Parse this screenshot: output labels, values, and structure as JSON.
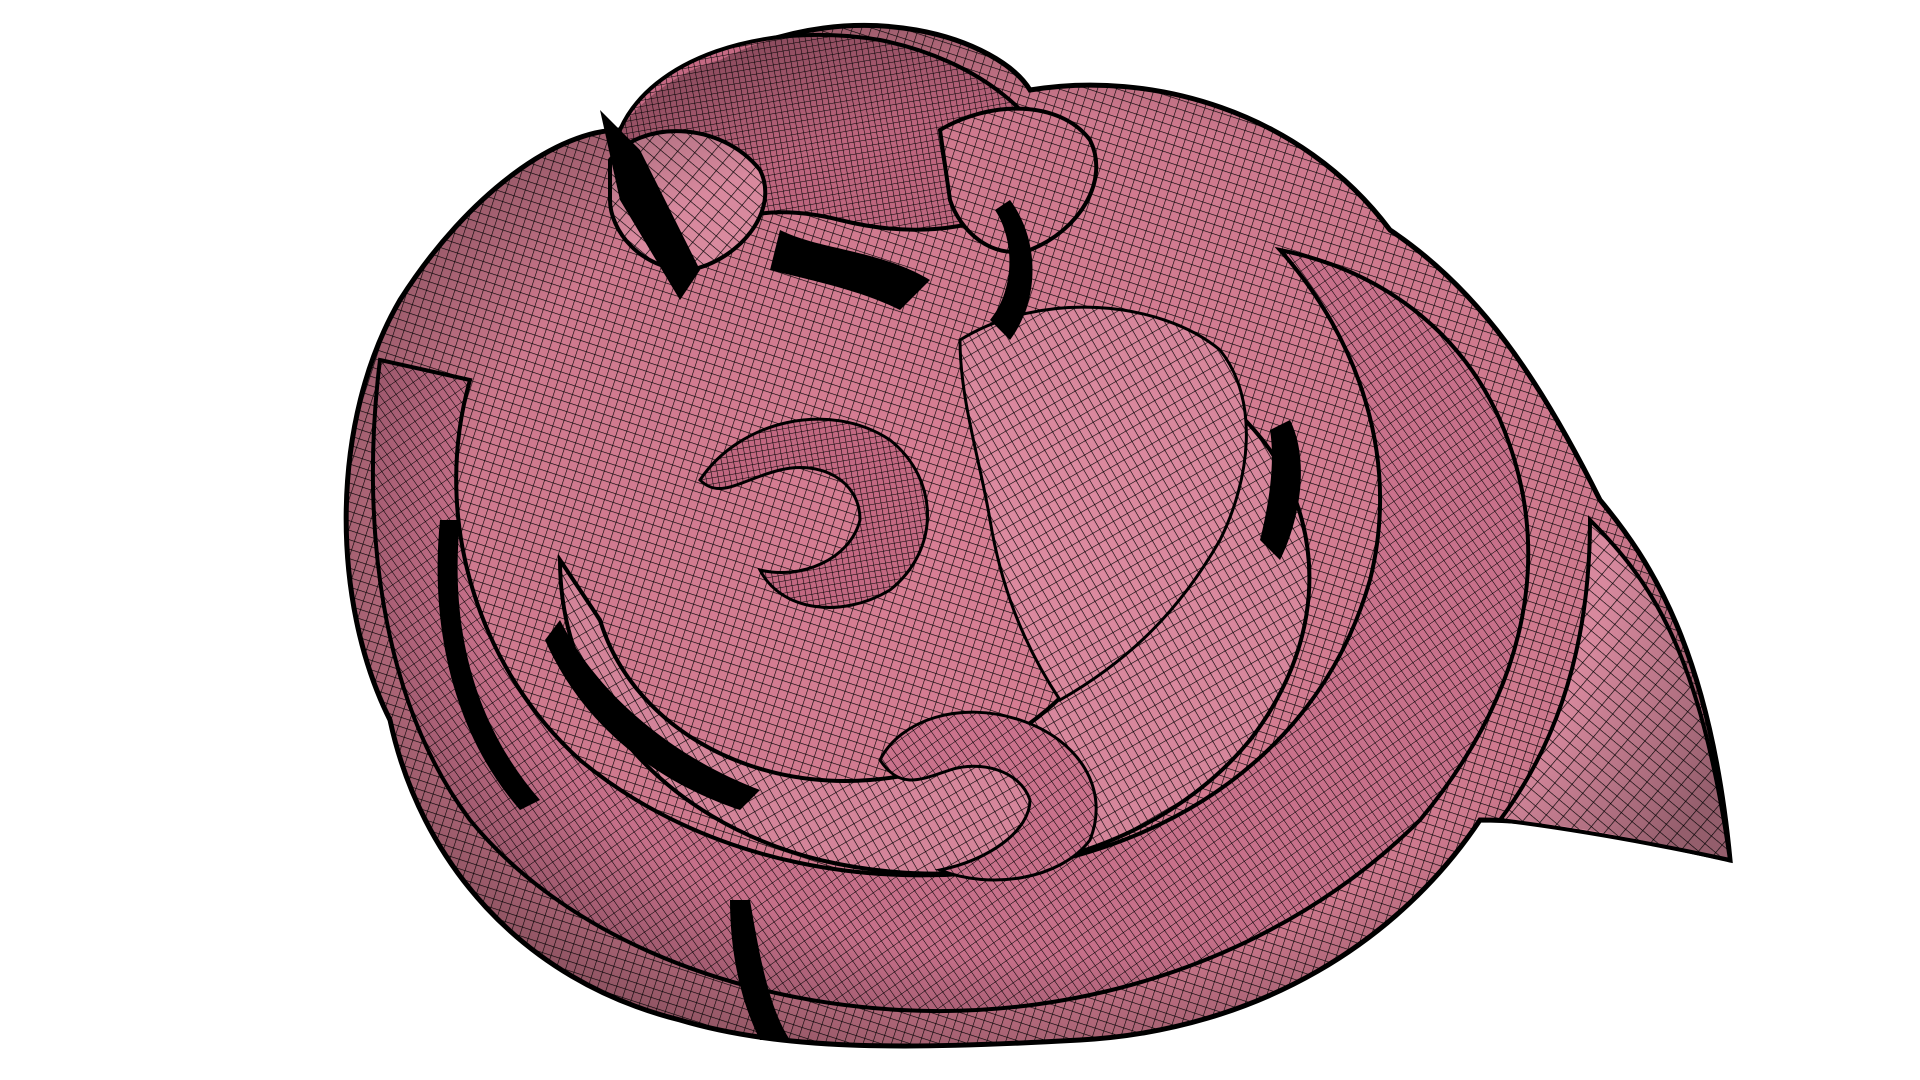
{
  "scene": {
    "subject": "wireframe-mesh-spiral-surface",
    "background_color": "#ffffff",
    "surface_color": "#d97f95",
    "surface_shadow_color": "#b85f77",
    "mesh_line_color": "#000000",
    "outline_color": "#000000"
  }
}
